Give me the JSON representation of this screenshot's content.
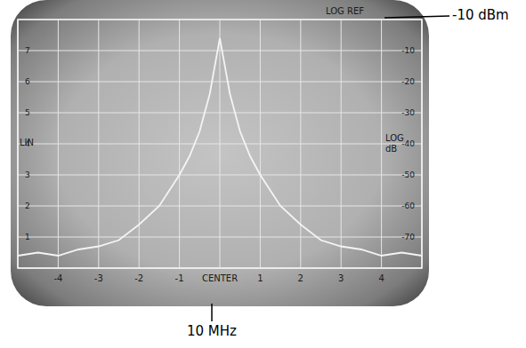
{
  "chart_data": {
    "type": "line",
    "x": [
      -5,
      -4.5,
      -4,
      -3.5,
      -3,
      -2.5,
      -2,
      -1.5,
      -1,
      -0.75,
      -0.5,
      -0.25,
      0,
      0.25,
      0.5,
      0.75,
      1,
      1.5,
      2,
      2.5,
      3,
      3.5,
      4,
      4.5,
      5
    ],
    "values": [
      -76,
      -75,
      -76,
      -74,
      -73,
      -71,
      -66,
      -60,
      -50,
      -44,
      -36,
      -24,
      -6,
      -24,
      -36,
      -44,
      -50,
      -60,
      -66,
      -71,
      -73,
      -74,
      -76,
      -75,
      -76
    ],
    "color": "#f4f4f4",
    "xlim": [
      -5,
      5
    ],
    "xticks": [
      -4,
      -3,
      -2,
      -1,
      {
        "value": 0,
        "label": "CENTER"
      },
      1,
      2,
      3,
      4
    ],
    "ylim": [
      -80,
      0
    ],
    "yticks": [
      -70,
      -60,
      -50,
      -40,
      -30,
      -20,
      -10
    ],
    "y_label": "LOG dB",
    "y2lim": [
      0,
      8
    ],
    "y2ticks": [
      1,
      2,
      3,
      4,
      5,
      6,
      7
    ],
    "y2_label": "LIN",
    "annotations": [
      "LOG REF",
      "-10 dBm",
      "10 MHz"
    ],
    "grid": true
  }
}
